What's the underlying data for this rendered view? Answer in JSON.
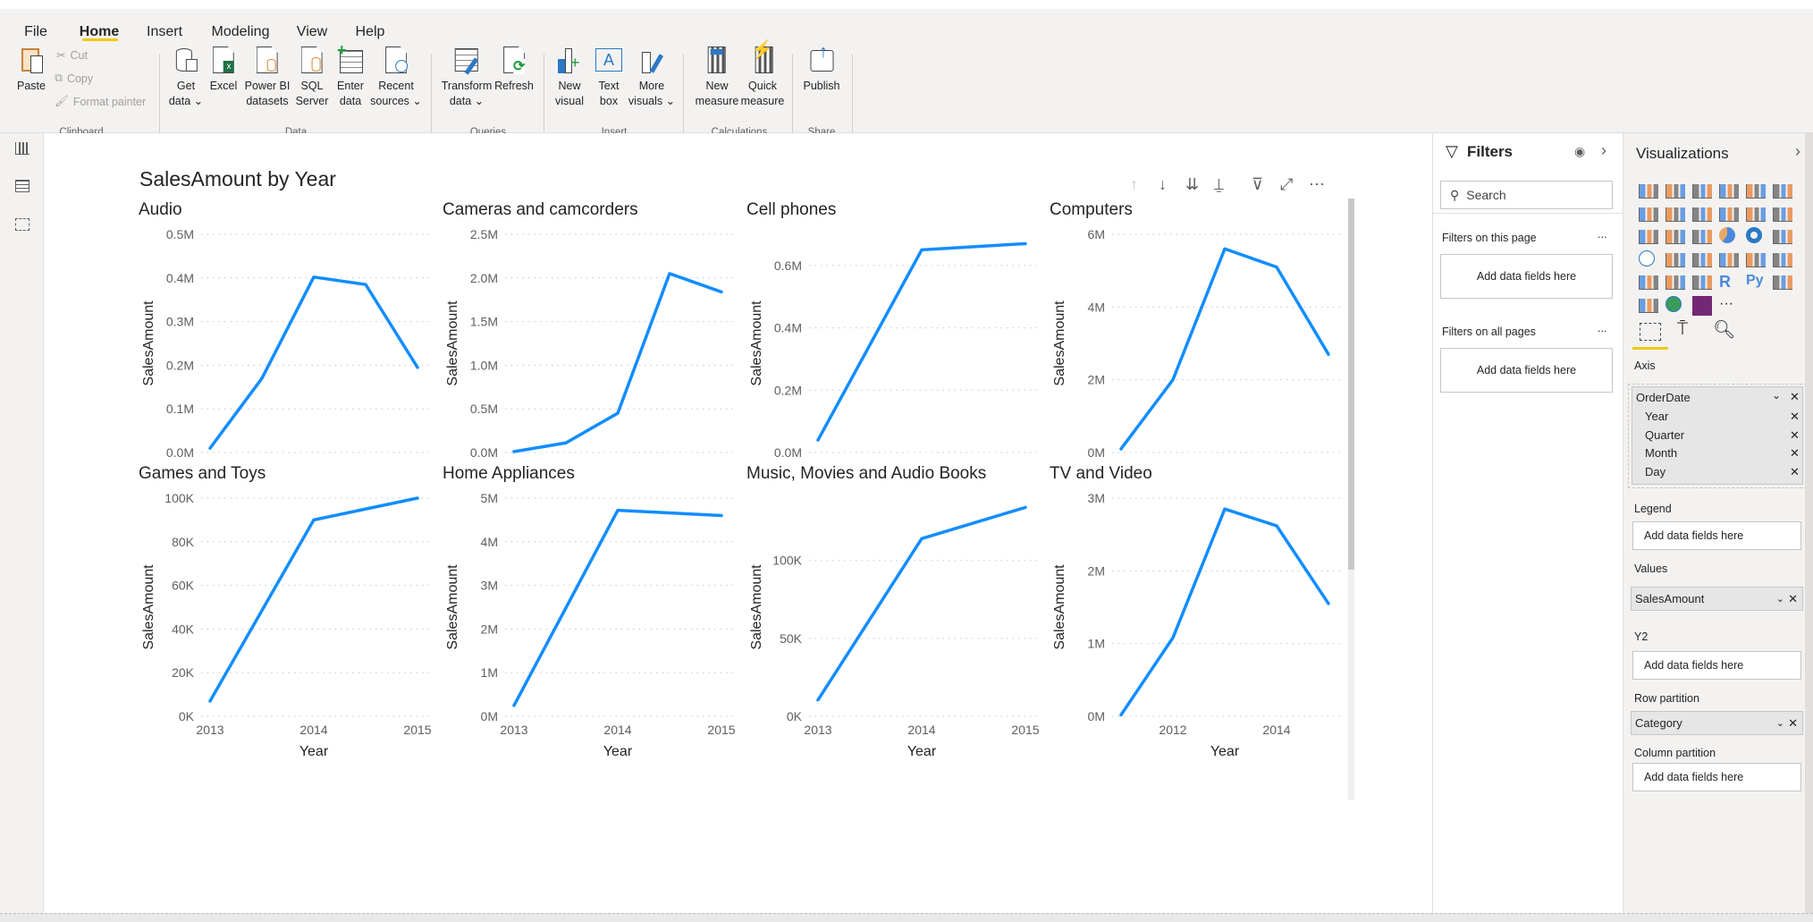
{
  "ribbon": {
    "tabs": [
      "File",
      "Home",
      "Insert",
      "Modeling",
      "View",
      "Help"
    ],
    "active_tab": "Home",
    "clipboard": {
      "paste": "Paste",
      "cut": "Cut",
      "copy": "Copy",
      "format_painter": "Format painter",
      "group": "Clipboard"
    },
    "data": {
      "get_data": [
        "Get",
        "data ⌄"
      ],
      "excel": [
        "Excel",
        ""
      ],
      "powerbi": [
        "Power BI",
        "datasets"
      ],
      "sql": [
        "SQL",
        "Server"
      ],
      "enter": [
        "Enter",
        "data"
      ],
      "recent": [
        "Recent",
        "sources ⌄"
      ],
      "group": "Data"
    },
    "queries": {
      "transform": [
        "Transform",
        "data ⌄"
      ],
      "refresh": [
        "Refresh",
        ""
      ],
      "group": "Queries"
    },
    "insert": {
      "new_visual": [
        "New",
        "visual"
      ],
      "text_box": [
        "Text",
        "box"
      ],
      "more_visuals": [
        "More",
        "visuals ⌄"
      ],
      "group": "Insert"
    },
    "calculations": {
      "new_measure": [
        "New",
        "measure"
      ],
      "quick_measure": [
        "Quick",
        "measure"
      ],
      "group": "Calculations"
    },
    "share": {
      "publish": [
        "Publish",
        ""
      ],
      "group": "Share"
    }
  },
  "filters": {
    "title": "Filters",
    "search_placeholder": "Search",
    "on_this_page": "Filters on this page",
    "on_all_pages": "Filters on all pages",
    "add_fields": "Add data fields here",
    "more": "..."
  },
  "visualizations": {
    "title": "Visualizations",
    "icons": [
      "stacked-bar",
      "stacked-column",
      "clustered-bar",
      "clustered-column",
      "100-stacked-bar",
      "100-stacked-column",
      "line",
      "area",
      "stacked-area",
      "line-stacked-column",
      "line-clustered-column",
      "ribbon",
      "waterfall",
      "funnel",
      "scatter",
      "pie",
      "donut",
      "treemap",
      "map",
      "filled-map",
      "gauge",
      "card",
      "multi-row-card",
      "kpi",
      "slicer",
      "table",
      "matrix",
      "r-script",
      "python",
      "key-influencers",
      "qa",
      "arcgis-map",
      "custom-visual",
      "more"
    ],
    "r_label": "R",
    "py_label": "Py",
    "more_label": "···",
    "axis": {
      "label": "Axis",
      "field": "OrderDate",
      "children": [
        "Year",
        "Quarter",
        "Month",
        "Day"
      ]
    },
    "legend": {
      "label": "Legend",
      "placeholder": "Add data fields here"
    },
    "values": {
      "label": "Values",
      "field": "SalesAmount"
    },
    "y2": {
      "label": "Y2",
      "placeholder": "Add data fields here"
    },
    "row_partition": {
      "label": "Row partition",
      "field": "Category"
    },
    "column_partition": {
      "label": "Column partition",
      "placeholder": "Add data fields here"
    }
  },
  "chart_data": {
    "type": "line",
    "title": "SalesAmount by Year",
    "xlabel": "Year",
    "ylabel": "SalesAmount",
    "color": "#118dff",
    "grid": true,
    "panels": [
      {
        "name": "Audio",
        "x": [
          2013,
          2013.5,
          2014,
          2014.5,
          2015
        ],
        "y": [
          10000,
          170000,
          402000,
          385000,
          195000
        ],
        "ylim": [
          0,
          500000
        ],
        "xlim": [
          2013,
          2015
        ],
        "yticks": [
          [
            0,
            "0.0M"
          ],
          [
            100000,
            "0.1M"
          ],
          [
            200000,
            "0.2M"
          ],
          [
            300000,
            "0.3M"
          ],
          [
            400000,
            "0.4M"
          ],
          [
            500000,
            "0.5M"
          ]
        ],
        "xticks": []
      },
      {
        "name": "Cameras and camcorders",
        "x": [
          2013,
          2013.5,
          2014,
          2014.5,
          2015
        ],
        "y": [
          10000,
          110000,
          450000,
          2050000,
          1840000
        ],
        "ylim": [
          0,
          2500000
        ],
        "xlim": [
          2013,
          2015
        ],
        "yticks": [
          [
            0,
            "0.0M"
          ],
          [
            500000,
            "0.5M"
          ],
          [
            1000000,
            "1.0M"
          ],
          [
            1500000,
            "1.5M"
          ],
          [
            2000000,
            "2.0M"
          ],
          [
            2500000,
            "2.5M"
          ]
        ],
        "xticks": []
      },
      {
        "name": "Cell phones",
        "x": [
          2013,
          2014,
          2015
        ],
        "y": [
          40000,
          650000,
          670000
        ],
        "ylim": [
          0,
          700000
        ],
        "xlim": [
          2013,
          2015
        ],
        "yticks": [
          [
            0,
            "0.0M"
          ],
          [
            200000,
            "0.2M"
          ],
          [
            400000,
            "0.4M"
          ],
          [
            600000,
            "0.6M"
          ]
        ],
        "xticks": []
      },
      {
        "name": "Computers",
        "x": [
          2011,
          2012,
          2013,
          2014,
          2015
        ],
        "y": [
          100000,
          2000000,
          5600000,
          5100000,
          2700000
        ],
        "ylim": [
          0,
          6000000
        ],
        "xlim": [
          2011,
          2015
        ],
        "yticks": [
          [
            0,
            "0M"
          ],
          [
            2000000,
            "2M"
          ],
          [
            4000000,
            "4M"
          ],
          [
            6000000,
            "6M"
          ]
        ],
        "xticks": []
      },
      {
        "name": "Games and Toys",
        "x": [
          2013,
          2014,
          2015
        ],
        "y": [
          7000,
          90000,
          100000
        ],
        "ylim": [
          0,
          100000
        ],
        "xlim": [
          2013,
          2015
        ],
        "yticks": [
          [
            0,
            "0K"
          ],
          [
            20000,
            "20K"
          ],
          [
            40000,
            "40K"
          ],
          [
            60000,
            "60K"
          ],
          [
            80000,
            "80K"
          ],
          [
            100000,
            "100K"
          ]
        ],
        "xticks": [
          [
            2013,
            "2013"
          ],
          [
            2014,
            "2014"
          ],
          [
            2015,
            "2015"
          ]
        ]
      },
      {
        "name": "Home Appliances",
        "x": [
          2013,
          2014,
          2015
        ],
        "y": [
          250000,
          4720000,
          4600000
        ],
        "ylim": [
          0,
          5000000
        ],
        "xlim": [
          2013,
          2015
        ],
        "yticks": [
          [
            0,
            "0M"
          ],
          [
            1000000,
            "1M"
          ],
          [
            2000000,
            "2M"
          ],
          [
            3000000,
            "3M"
          ],
          [
            4000000,
            "4M"
          ],
          [
            5000000,
            "5M"
          ]
        ],
        "xticks": [
          [
            2013,
            "2013"
          ],
          [
            2014,
            "2014"
          ],
          [
            2015,
            "2015"
          ]
        ]
      },
      {
        "name": "Music, Movies and Audio Books",
        "x": [
          2013,
          2014,
          2015
        ],
        "y": [
          10500,
          114000,
          134000
        ],
        "ylim": [
          0,
          140000
        ],
        "xlim": [
          2013,
          2015
        ],
        "yticks": [
          [
            0,
            "0K"
          ],
          [
            50000,
            "50K"
          ],
          [
            100000,
            "100K"
          ]
        ],
        "xticks": [
          [
            2013,
            "2013"
          ],
          [
            2014,
            "2014"
          ],
          [
            2015,
            "2015"
          ]
        ]
      },
      {
        "name": "TV and Video",
        "x": [
          2011,
          2012,
          2013,
          2014,
          2015
        ],
        "y": [
          20000,
          1080000,
          2850000,
          2620000,
          1550000
        ],
        "ylim": [
          0,
          3000000
        ],
        "xlim": [
          2011,
          2015
        ],
        "yticks": [
          [
            0,
            "0M"
          ],
          [
            1000000,
            "1M"
          ],
          [
            2000000,
            "2M"
          ],
          [
            3000000,
            "3M"
          ]
        ],
        "xticks": [
          [
            2012,
            "2012"
          ],
          [
            2014,
            "2014"
          ]
        ]
      }
    ]
  }
}
